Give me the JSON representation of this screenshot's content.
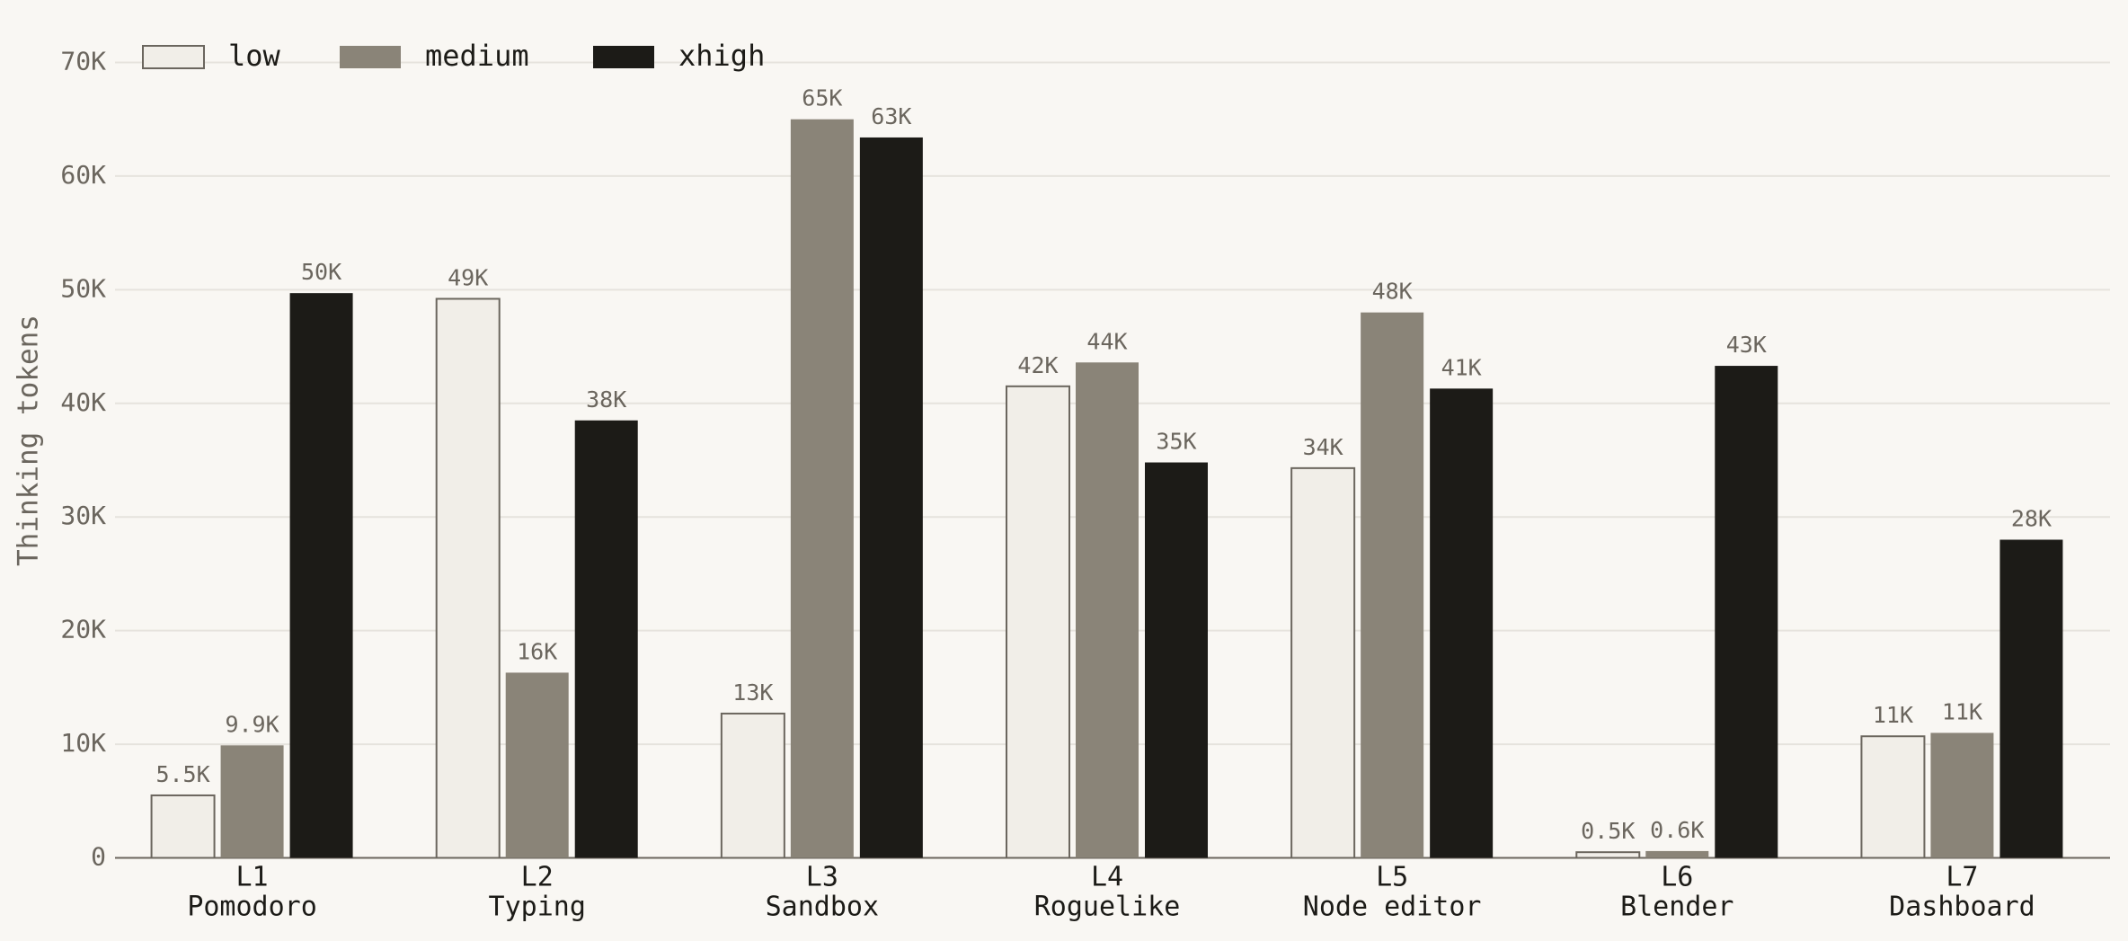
{
  "chart_data": {
    "type": "bar",
    "y_label": "Thinking tokens",
    "categories": [
      [
        "L1",
        "Pomodoro"
      ],
      [
        "L2",
        "Typing"
      ],
      [
        "L3",
        "Sandbox"
      ],
      [
        "L4",
        "Roguelike"
      ],
      [
        "L5",
        "Node editor"
      ],
      [
        "L6",
        "Blender"
      ],
      [
        "L7",
        "Dashboard"
      ]
    ],
    "series": [
      {
        "name": "low",
        "color": "#f1eee8",
        "values": [
          5500,
          49200,
          12700,
          41500,
          34300,
          500,
          10700
        ],
        "value_labels": [
          "5.5K",
          "49K",
          "13K",
          "42K",
          "34K",
          "0.5K",
          "11K"
        ]
      },
      {
        "name": "medium",
        "color": "#8a8478",
        "values": [
          9900,
          16300,
          65000,
          43600,
          48000,
          600,
          11000
        ],
        "value_labels": [
          "9.9K",
          "16K",
          "65K",
          "44K",
          "48K",
          "0.6K",
          "11K"
        ]
      },
      {
        "name": "xhigh",
        "color": "#1c1b17",
        "values": [
          49700,
          38500,
          63400,
          34800,
          41300,
          43300,
          28000
        ],
        "value_labels": [
          "50K",
          "38K",
          "63K",
          "35K",
          "41K",
          "43K",
          "28K"
        ]
      }
    ],
    "ylim": [
      0,
      70000
    ],
    "yticks": [
      0,
      {
        "value": 10000,
        "label": "10K"
      },
      {
        "value": 20000,
        "label": "20K"
      },
      {
        "value": 30000,
        "label": "30K"
      },
      {
        "value": 40000,
        "label": "40K"
      },
      {
        "value": 50000,
        "label": "50K"
      },
      {
        "value": 60000,
        "label": "60K"
      },
      {
        "value": 70000,
        "label": "70K"
      }
    ],
    "grid": true,
    "legend": "top-left"
  }
}
